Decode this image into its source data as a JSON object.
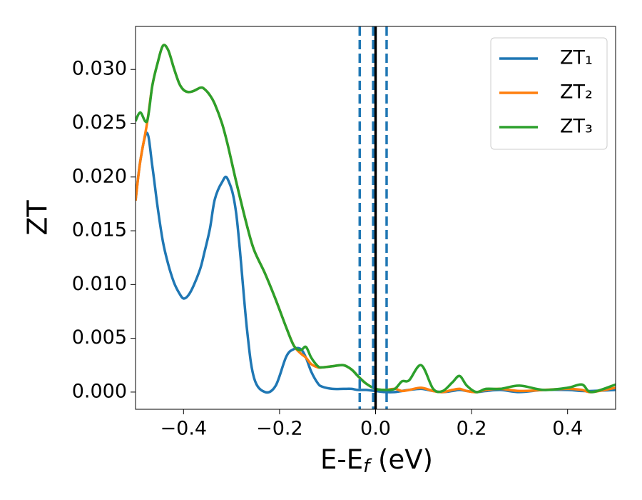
{
  "chart_data": {
    "type": "line",
    "xlabel": [
      "E-E",
      "f",
      " (eV)"
    ],
    "ylabel": "ZT",
    "x": [
      -0.5,
      -0.49,
      -0.476,
      -0.465,
      -0.454,
      -0.443,
      -0.432,
      -0.42,
      -0.409,
      -0.4,
      -0.39,
      -0.379,
      -0.365,
      -0.357,
      -0.345,
      -0.335,
      -0.32,
      -0.308,
      -0.29,
      -0.268,
      -0.253,
      -0.23,
      -0.208,
      -0.186,
      -0.17,
      -0.156,
      -0.145,
      -0.134,
      -0.12,
      -0.111,
      -0.09,
      -0.067,
      -0.05,
      -0.037,
      -0.02,
      0,
      0.02,
      0.04,
      0.055,
      0.07,
      0.095,
      0.12,
      0.14,
      0.16,
      0.175,
      0.19,
      0.21,
      0.23,
      0.26,
      0.3,
      0.35,
      0.4,
      0.43,
      0.45,
      0.5
    ],
    "series": [
      {
        "name": "ZT₁",
        "color": "#1f77b4",
        "values": [
          0.0178,
          0.0215,
          0.0241,
          0.021,
          0.0172,
          0.014,
          0.0119,
          0.0102,
          0.0092,
          0.0087,
          0.009,
          0.0099,
          0.0115,
          0.0129,
          0.0152,
          0.0179,
          0.0195,
          0.0198,
          0.0165,
          0.0059,
          0.0013,
          0.0,
          0.0006,
          0.0033,
          0.004,
          0.004,
          0.0032,
          0.0019,
          0.0008,
          0.0005,
          0.0003,
          0.0003,
          0.0003,
          0.0002,
          0.0002,
          0.0001,
          0.0,
          0.0,
          0.0001,
          0.0002,
          0.0003,
          0.0001,
          0.0,
          0.0001,
          0.0002,
          0.0001,
          0.0,
          0.0001,
          0.0002,
          0.0,
          0.0002,
          0.0002,
          0.0001,
          0.0001,
          0.0002
        ]
      },
      {
        "name": "ZT₂",
        "color": "#ff7f0e",
        "values": [
          0.0178,
          0.0215,
          0.025,
          0.0285,
          0.0306,
          0.0322,
          0.0318,
          0.0301,
          0.0287,
          0.0281,
          0.0279,
          0.028,
          0.0283,
          0.0282,
          0.0276,
          0.0268,
          0.025,
          0.023,
          0.0195,
          0.0155,
          0.0132,
          0.011,
          0.0086,
          0.006,
          0.0043,
          0.0036,
          0.0032,
          0.0026,
          0.0023,
          0.0023,
          0.0024,
          0.0025,
          0.0021,
          0.0015,
          0.0008,
          0.0003,
          0.0002,
          0.0003,
          0.0001,
          0.0002,
          0.0004,
          0.0001,
          0.0,
          0.0002,
          0.0003,
          0.0001,
          0.0,
          0.0002,
          0.0003,
          0.0001,
          0.0002,
          0.0003,
          0.0002,
          0.0,
          0.0004
        ]
      },
      {
        "name": "ZT₃",
        "color": "#2ca02c",
        "values": [
          0.0252,
          0.026,
          0.0252,
          0.0285,
          0.0306,
          0.0322,
          0.0318,
          0.0301,
          0.0287,
          0.0281,
          0.0279,
          0.028,
          0.0283,
          0.0282,
          0.0276,
          0.0268,
          0.025,
          0.023,
          0.0195,
          0.0155,
          0.0132,
          0.011,
          0.0086,
          0.006,
          0.0043,
          0.0039,
          0.0042,
          0.0032,
          0.0024,
          0.0023,
          0.0024,
          0.0025,
          0.0021,
          0.0015,
          0.0008,
          0.0003,
          0.0002,
          0.0003,
          0.001,
          0.0011,
          0.0025,
          0.0003,
          0.0001,
          0.0009,
          0.0015,
          0.0006,
          0.0,
          0.0003,
          0.0003,
          0.0006,
          0.0002,
          0.0004,
          0.0007,
          0.0,
          0.0007
        ]
      }
    ],
    "vlines": [
      {
        "x": -0.033,
        "color": "#1f77b4",
        "style": "dashed"
      },
      {
        "x": -0.005,
        "color": "#1f77b4",
        "style": "dashed"
      },
      {
        "x": 0.023,
        "color": "#1f77b4",
        "style": "dashed"
      },
      {
        "x": 0,
        "color": "#000000",
        "style": "solid"
      }
    ],
    "xlim": [
      -0.5,
      0.5
    ],
    "xticks": [
      {
        "value": -0.4,
        "label": "−0.4"
      },
      {
        "value": -0.2,
        "label": "−0.2"
      },
      {
        "value": 0,
        "label": "0.0"
      },
      0.2,
      0.4
    ],
    "ylim": [
      -0.0016,
      0.034
    ],
    "yticks": [
      {
        "value": 0,
        "label": "0.000"
      },
      0.005,
      {
        "value": 0.01,
        "label": "0.010"
      },
      0.015,
      {
        "value": 0.02,
        "label": "0.020"
      },
      0.025,
      {
        "value": 0.03,
        "label": "0.030"
      }
    ],
    "legend": "upper right"
  }
}
